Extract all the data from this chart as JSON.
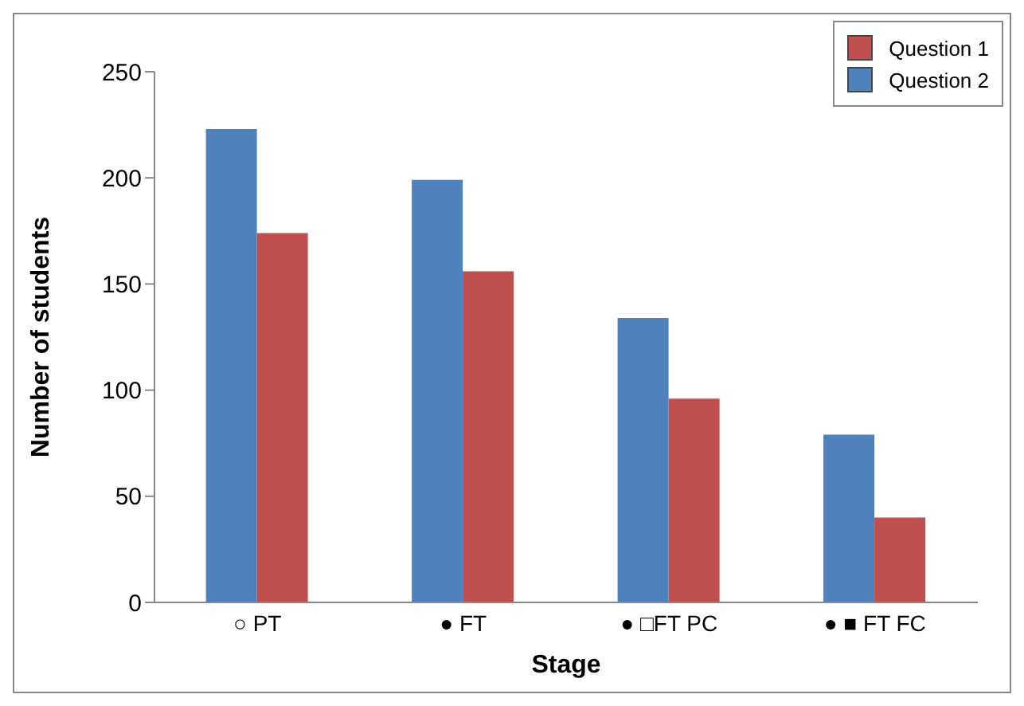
{
  "chart_data": {
    "type": "bar",
    "xlabel": "Stage",
    "ylabel": "Number of students",
    "categories": [
      "○ PT",
      "● FT",
      "● □FT PC",
      "● ■ FT FC"
    ],
    "series": [
      {
        "name": "Question 2",
        "color": "#4f81bd",
        "values": [
          223,
          199,
          134,
          79
        ]
      },
      {
        "name": "Question 1",
        "color": "#c0504d",
        "values": [
          174,
          156,
          96,
          40
        ]
      }
    ],
    "ylim": [
      0,
      250
    ],
    "yticks": [
      0,
      50,
      100,
      150,
      200,
      250
    ],
    "grid": false,
    "legend": "top right"
  }
}
